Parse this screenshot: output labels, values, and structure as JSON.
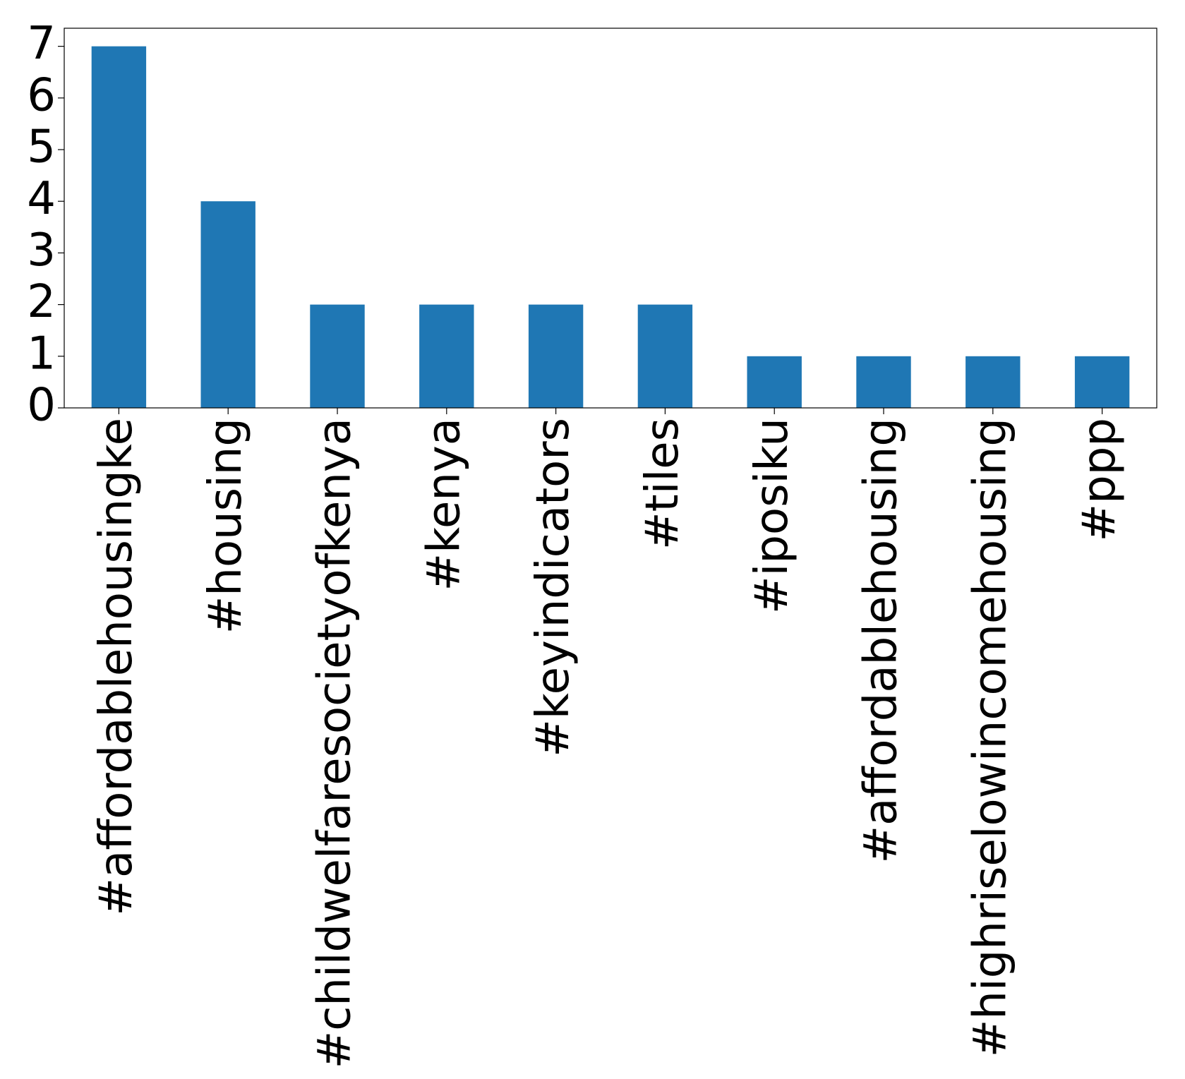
{
  "chart_data": {
    "type": "bar",
    "categories": [
      "#affordablehousingke",
      "#housing",
      "#childwelfaresocietyofkenya",
      "#kenya",
      "#keyindicators",
      "#tiles",
      "#iposiku",
      "#affordablehousing",
      "#highriselowincomehousing",
      "#ppp"
    ],
    "values": [
      7,
      4,
      2,
      2,
      2,
      2,
      1,
      1,
      1,
      1
    ],
    "color": "#1f77b4",
    "ylim": [
      0,
      7.35
    ],
    "yticks": [
      0,
      1,
      2,
      3,
      4,
      5,
      6,
      7
    ],
    "grid": false
  }
}
